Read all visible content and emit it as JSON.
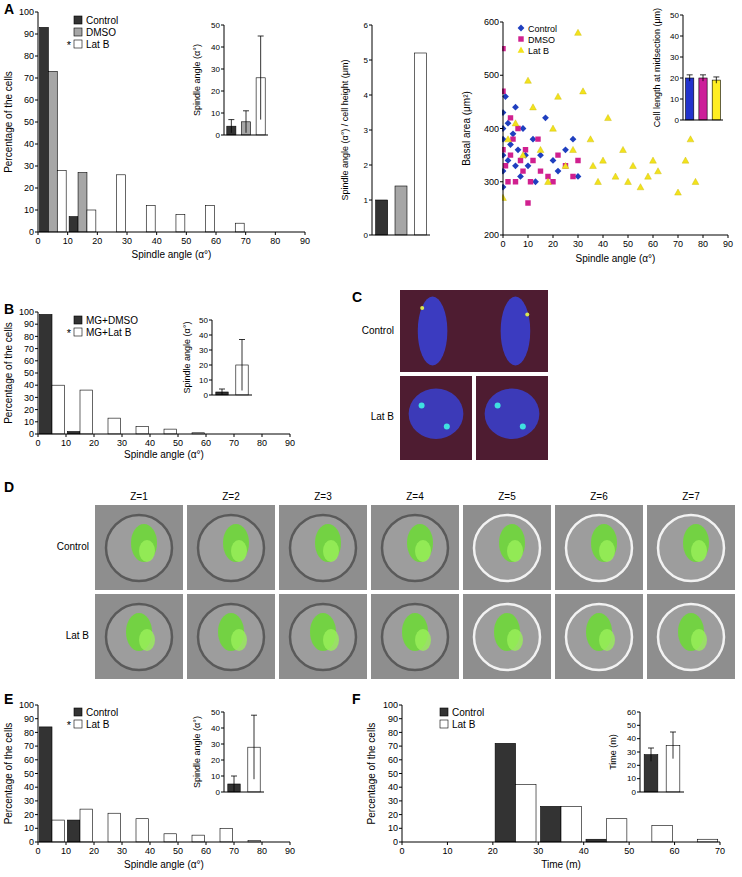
{
  "panel_labels": [
    "A",
    "B",
    "C",
    "D",
    "E",
    "F"
  ],
  "chart_data": [
    {
      "type": "histogram",
      "ylabel": "Percentage of the cells",
      "xlabel": "Spindle angle (α°)",
      "bins": [
        0,
        10,
        20,
        30,
        40,
        50,
        60,
        70,
        80,
        90
      ],
      "series": [
        {
          "name": "Control",
          "color": "#333333",
          "values": [
            93,
            7,
            0,
            0,
            0,
            0,
            0,
            0,
            0
          ]
        },
        {
          "name": "DMSO",
          "color": "#a6a6a6",
          "values": [
            73,
            27,
            0,
            0,
            0,
            0,
            0,
            0,
            0
          ]
        },
        {
          "name": "Lat B",
          "color": "#ffffff",
          "values": [
            28,
            10,
            26,
            12,
            8,
            12,
            4,
            0,
            0
          ]
        }
      ],
      "xlim": [
        0,
        90
      ],
      "xticks": [
        0,
        10,
        20,
        30,
        40,
        50,
        60,
        70,
        80,
        90
      ],
      "ylim": [
        0,
        100
      ],
      "yticks": [
        0,
        10,
        20,
        30,
        40,
        50,
        60,
        70,
        80,
        90,
        100
      ],
      "legend": "upper left",
      "annotations": [
        "*"
      ]
    },
    {
      "type": "bar",
      "categories": [
        null,
        null,
        null
      ],
      "values": [
        4,
        6,
        26
      ],
      "errors": [
        3,
        5,
        19
      ],
      "colors": [
        "#333333",
        "#a6a6a6",
        "#ffffff"
      ],
      "ylabel": "Spindle angle (α°)",
      "ylim": [
        0,
        50
      ],
      "yticks": [
        0,
        10,
        20,
        30,
        40,
        50
      ]
    },
    {
      "type": "bar",
      "categories": [
        null,
        null,
        null
      ],
      "values": [
        1,
        1.4,
        5.2
      ],
      "colors": [
        "#333333",
        "#a6a6a6",
        "#ffffff"
      ],
      "ylabel": "Spindle angle (α°) / cell height (μm)",
      "ylim": [
        0,
        6
      ],
      "yticks": [
        0,
        1,
        2,
        3,
        4,
        5,
        6
      ]
    },
    {
      "type": "scatter",
      "xlabel": "Spindle angle (α°)",
      "ylabel": "Basal area (μm²)",
      "series": [
        {
          "name": "Control",
          "color": "#1f3fbf",
          "marker": "diamond",
          "x": [
            0,
            0,
            0,
            0,
            0,
            0,
            1,
            2,
            2,
            3,
            4,
            5,
            5,
            6,
            7,
            8,
            9,
            10,
            12,
            13,
            15,
            17,
            20,
            22,
            25,
            28,
            30
          ],
          "values": [
            430,
            400,
            380,
            350,
            320,
            290,
            460,
            410,
            340,
            370,
            390,
            330,
            440,
            360,
            310,
            400,
            350,
            330,
            380,
            300,
            350,
            420,
            340,
            320,
            360,
            380,
            310
          ]
        },
        {
          "name": "DMSO",
          "color": "#d0208f",
          "marker": "square",
          "x": [
            0,
            0,
            0,
            1,
            2,
            3,
            3,
            4,
            5,
            6,
            7,
            8,
            9,
            10,
            11,
            12,
            14,
            15,
            18,
            20,
            22,
            25,
            28,
            30
          ],
          "values": [
            550,
            470,
            360,
            330,
            300,
            420,
            350,
            380,
            300,
            400,
            340,
            320,
            360,
            260,
            300,
            340,
            380,
            320,
            310,
            300,
            350,
            330,
            310,
            340
          ]
        },
        {
          "name": "Lat B",
          "color": "#f2e21c",
          "marker": "triangle",
          "x": [
            0,
            2,
            5,
            8,
            10,
            12,
            15,
            18,
            20,
            22,
            25,
            28,
            30,
            32,
            35,
            36,
            38,
            40,
            42,
            45,
            48,
            50,
            52,
            55,
            58,
            60,
            62,
            70,
            73,
            75,
            77
          ],
          "values": [
            270,
            380,
            410,
            350,
            490,
            440,
            360,
            300,
            400,
            460,
            330,
            360,
            580,
            470,
            380,
            330,
            300,
            340,
            420,
            310,
            360,
            300,
            330,
            290,
            310,
            340,
            320,
            280,
            340,
            380,
            300
          ]
        }
      ],
      "xlim": [
        0,
        90
      ],
      "xticks": [
        0,
        10,
        20,
        30,
        40,
        50,
        60,
        70,
        80,
        90
      ],
      "ylim": [
        200,
        600
      ],
      "yticks": [
        200,
        300,
        400,
        500,
        600
      ],
      "legend": "upper left"
    },
    {
      "type": "bar",
      "categories": [
        null,
        null,
        null
      ],
      "values": [
        20,
        20,
        19
      ],
      "errors": [
        1.5,
        1.5,
        1.5
      ],
      "colors": [
        "#2233cc",
        "#cc1f99",
        "#ffee22"
      ],
      "ylabel": "Cell length at midsection (μm)",
      "ylim": [
        0,
        50
      ],
      "yticks": [
        0,
        10,
        20,
        30,
        40,
        50
      ]
    },
    {
      "type": "histogram",
      "ylabel": "Percentage of the cells",
      "xlabel": "Spindle angle (α°)",
      "bins": [
        0,
        10,
        20,
        30,
        40,
        50,
        60,
        70,
        80,
        90
      ],
      "series": [
        {
          "name": "MG+DMSO",
          "color": "#333333",
          "values": [
            98,
            2,
            0,
            0,
            0,
            0,
            0,
            0,
            0
          ]
        },
        {
          "name": "MG+Lat B",
          "color": "#ffffff",
          "values": [
            40,
            36,
            13,
            6,
            4,
            1,
            0,
            0,
            0
          ]
        }
      ],
      "xlim": [
        0,
        90
      ],
      "xticks": [
        0,
        10,
        20,
        30,
        40,
        50,
        60,
        70,
        80,
        90
      ],
      "ylim": [
        0,
        100
      ],
      "yticks": [
        0,
        10,
        20,
        30,
        40,
        50,
        60,
        70,
        80,
        90,
        100
      ],
      "legend": "upper left",
      "annotations": [
        "*"
      ]
    },
    {
      "type": "bar",
      "categories": [
        null,
        null
      ],
      "values": [
        2,
        20
      ],
      "errors": [
        2,
        17
      ],
      "colors": [
        "#333333",
        "#ffffff"
      ],
      "ylabel": "Spindle angle (α°)",
      "ylim": [
        0,
        50
      ],
      "yticks": [
        0,
        10,
        20,
        30,
        40,
        50
      ]
    },
    {
      "type": "histogram",
      "ylabel": "Percentage of the cells",
      "xlabel": "Spindle angle (α°)",
      "bins": [
        0,
        10,
        20,
        30,
        40,
        50,
        60,
        70,
        80,
        90
      ],
      "series": [
        {
          "name": "Control",
          "color": "#333333",
          "values": [
            84,
            16,
            0,
            0,
            0,
            0,
            0,
            0,
            0
          ]
        },
        {
          "name": "Lat B",
          "color": "#ffffff",
          "values": [
            16,
            24,
            21,
            17,
            6,
            5,
            10,
            1,
            0
          ]
        }
      ],
      "xlim": [
        0,
        90
      ],
      "xticks": [
        0,
        10,
        20,
        30,
        40,
        50,
        60,
        70,
        80,
        90
      ],
      "ylim": [
        0,
        100
      ],
      "yticks": [
        0,
        10,
        20,
        30,
        40,
        50,
        60,
        70,
        80,
        90,
        100
      ],
      "legend": "upper left",
      "annotations": [
        "*"
      ]
    },
    {
      "type": "bar",
      "categories": [
        null,
        null
      ],
      "values": [
        5,
        28
      ],
      "errors": [
        5,
        20
      ],
      "colors": [
        "#333333",
        "#ffffff"
      ],
      "ylabel": "Spindle angle (α°)",
      "ylim": [
        0,
        50
      ],
      "yticks": [
        0,
        10,
        20,
        30,
        40,
        50
      ]
    },
    {
      "type": "histogram",
      "ylabel": "Percentage of the cells",
      "xlabel": "Time (m)",
      "bins": [
        0,
        10,
        20,
        30,
        40,
        50,
        60,
        70
      ],
      "series": [
        {
          "name": "Control",
          "color": "#333333",
          "values": [
            0,
            0,
            72,
            26,
            2,
            0,
            0
          ]
        },
        {
          "name": "Lat B",
          "color": "#ffffff",
          "values": [
            0,
            0,
            42,
            26,
            17,
            12,
            2
          ]
        }
      ],
      "xlim": [
        0,
        70
      ],
      "xticks": [
        0,
        10,
        20,
        30,
        40,
        50,
        60,
        70
      ],
      "ylim": [
        0,
        100
      ],
      "yticks": [
        0,
        10,
        20,
        30,
        40,
        50,
        60,
        70,
        80,
        90,
        100
      ],
      "legend": "upper left"
    },
    {
      "type": "bar",
      "categories": [
        null,
        null
      ],
      "values": [
        28,
        35
      ],
      "errors": [
        5,
        10
      ],
      "colors": [
        "#333333",
        "#ffffff"
      ],
      "ylabel": "Time (m)",
      "ylim": [
        0,
        60
      ],
      "yticks": [
        0,
        10,
        20,
        30,
        40,
        50,
        60
      ]
    }
  ],
  "images": [
    {
      "row_labels": [
        "Control",
        "Lat B"
      ]
    },
    {
      "column_labels": [
        "Z=1",
        "Z=2",
        "Z=3",
        "Z=4",
        "Z=5",
        "Z=6",
        "Z=7"
      ],
      "row_labels": [
        "Control",
        "Lat B"
      ]
    }
  ]
}
